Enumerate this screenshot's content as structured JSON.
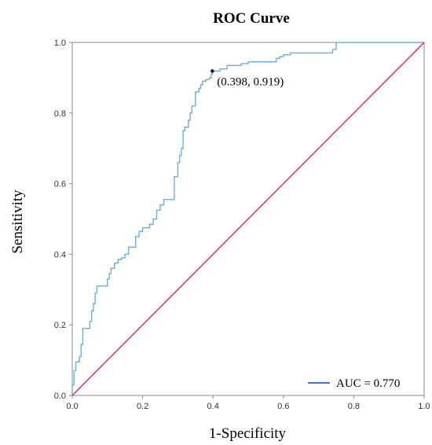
{
  "chart_data": {
    "type": "line",
    "title": "ROC Curve",
    "xlabel": "1-Specificity",
    "ylabel": "Sensitivity",
    "xlim": [
      0,
      1
    ],
    "ylim": [
      0,
      1
    ],
    "x_ticks": [
      "0.0",
      "0.2",
      "0.4",
      "0.6",
      "0.8",
      "1.0"
    ],
    "y_ticks": [
      "0.0",
      "0.2",
      "0.4",
      "0.6",
      "0.8",
      "1.0"
    ],
    "grid": false,
    "legend_position": "bottom-right",
    "series": [
      {
        "name": "AUC = 0.770",
        "color": "#6aaee0",
        "x": [
          0.0,
          0.0,
          0.005,
          0.005,
          0.01,
          0.01,
          0.02,
          0.02,
          0.025,
          0.025,
          0.03,
          0.03,
          0.035,
          0.035,
          0.05,
          0.05,
          0.055,
          0.055,
          0.06,
          0.06,
          0.065,
          0.065,
          0.07,
          0.07,
          0.08,
          0.08,
          0.09,
          0.09,
          0.1,
          0.1,
          0.105,
          0.105,
          0.11,
          0.11,
          0.12,
          0.12,
          0.13,
          0.13,
          0.14,
          0.14,
          0.15,
          0.15,
          0.16,
          0.16,
          0.18,
          0.18,
          0.19,
          0.19,
          0.2,
          0.2,
          0.22,
          0.22,
          0.23,
          0.23,
          0.24,
          0.24,
          0.25,
          0.25,
          0.26,
          0.26,
          0.27,
          0.27,
          0.28,
          0.28,
          0.29,
          0.29,
          0.3,
          0.3,
          0.305,
          0.305,
          0.31,
          0.31,
          0.315,
          0.315,
          0.32,
          0.32,
          0.33,
          0.33,
          0.335,
          0.335,
          0.34,
          0.34,
          0.35,
          0.35,
          0.36,
          0.36,
          0.365,
          0.365,
          0.37,
          0.37,
          0.38,
          0.38,
          0.39,
          0.39,
          0.395,
          0.395,
          0.398,
          0.398,
          0.42,
          0.42,
          0.44,
          0.44,
          0.48,
          0.48,
          0.5,
          0.5,
          0.58,
          0.58,
          0.59,
          0.59,
          0.6,
          0.6,
          0.62,
          0.62,
          0.74,
          0.74,
          0.75,
          0.75,
          0.76,
          0.76,
          1.0
        ],
        "y": [
          0.0,
          0.03,
          0.03,
          0.07,
          0.07,
          0.095,
          0.095,
          0.11,
          0.11,
          0.145,
          0.145,
          0.19,
          0.19,
          0.19,
          0.19,
          0.21,
          0.21,
          0.24,
          0.24,
          0.26,
          0.26,
          0.29,
          0.29,
          0.31,
          0.31,
          0.31,
          0.31,
          0.31,
          0.31,
          0.33,
          0.33,
          0.345,
          0.345,
          0.36,
          0.36,
          0.375,
          0.375,
          0.385,
          0.385,
          0.39,
          0.39,
          0.4,
          0.4,
          0.42,
          0.42,
          0.45,
          0.45,
          0.465,
          0.465,
          0.475,
          0.475,
          0.485,
          0.485,
          0.5,
          0.5,
          0.525,
          0.525,
          0.54,
          0.54,
          0.555,
          0.555,
          0.555,
          0.555,
          0.555,
          0.555,
          0.62,
          0.62,
          0.66,
          0.66,
          0.68,
          0.68,
          0.7,
          0.7,
          0.75,
          0.75,
          0.76,
          0.76,
          0.78,
          0.78,
          0.8,
          0.8,
          0.82,
          0.82,
          0.86,
          0.86,
          0.87,
          0.87,
          0.88,
          0.88,
          0.89,
          0.89,
          0.895,
          0.895,
          0.9,
          0.9,
          0.91,
          0.91,
          0.919,
          0.919,
          0.925,
          0.925,
          0.935,
          0.935,
          0.94,
          0.94,
          0.945,
          0.945,
          0.955,
          0.955,
          0.96,
          0.96,
          0.965,
          0.965,
          0.97,
          0.97,
          0.98,
          0.98,
          1.0,
          1.0,
          1.0,
          1.0
        ]
      },
      {
        "color": "#e8386e",
        "x": [
          0,
          1
        ],
        "y": [
          0,
          1
        ]
      }
    ],
    "annotations": [
      {
        "text": "(0.398, 0.919)",
        "x": 0.398,
        "y": 0.919
      }
    ]
  }
}
